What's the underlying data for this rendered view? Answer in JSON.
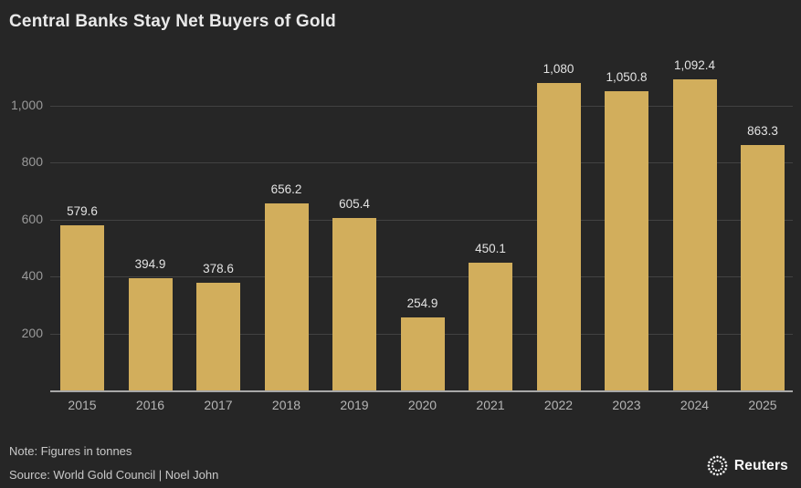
{
  "title": "Central Banks Stay Net Buyers of Gold",
  "footer": {
    "note": "Note: Figures in tonnes",
    "source": "Source: World Gold Council | Noel John",
    "brand": "Reuters"
  },
  "colors": {
    "background": "#262626",
    "bar": "#d2ae5c",
    "title_text": "#e9e9e9",
    "axis_text_y": "#9a9a9a",
    "axis_text_x": "#b5b5b5",
    "value_text": "#e3e3e3",
    "gridline": "#424242",
    "baseline": "#a8a8a8",
    "footer_text": "#c9c9c9",
    "brand_text": "#fafafa"
  },
  "chart_data": {
    "type": "bar",
    "title": "Central Banks Stay Net Buyers of Gold",
    "xlabel": "",
    "ylabel": "",
    "unit": "tonnes",
    "categories": [
      "2015",
      "2016",
      "2017",
      "2018",
      "2019",
      "2020",
      "2021",
      "2022",
      "2023",
      "2024",
      "2025"
    ],
    "values": [
      579.6,
      394.9,
      378.6,
      656.2,
      605.4,
      254.9,
      450.1,
      1080,
      1050.8,
      1092.4,
      863.3
    ],
    "value_labels": [
      "579.6",
      "394.9",
      "378.6",
      "656.2",
      "605.4",
      "254.9",
      "450.1",
      "1,080",
      "1,050.8",
      "1,092.4",
      "863.3"
    ],
    "ylim": [
      0,
      1150
    ],
    "yticks": [
      200,
      400,
      600,
      800,
      1000
    ],
    "ytick_labels": [
      "200",
      "400",
      "600",
      "800",
      "1,000"
    ],
    "grid": true,
    "legend": false
  }
}
